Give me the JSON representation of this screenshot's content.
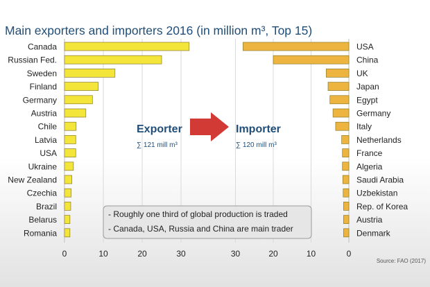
{
  "title": "Main exporters and importers 2016 (in million m³, Top 15)",
  "source": "Source: FAO (2017)",
  "colors": {
    "exporter_bar": "#F4E53A",
    "importer_bar": "#EDB53F",
    "bar_stroke": "#8A7A2A",
    "arrow": "#D13A35",
    "axis_label_blue": "#1F4E79",
    "note_bg": "#E6E6E6",
    "gradient_bottom": "#E2E2E2"
  },
  "exporter_label": "Exporter",
  "exporter_sum": "∑ 121 mill m³",
  "importer_label": "Importer",
  "importer_sum": "∑ 120 mill m³",
  "note_lines": [
    "- Roughly one third of global production is traded",
    "- Canada, USA, Russia and China are main trader"
  ],
  "chart_data": [
    {
      "type": "bar",
      "orientation": "horizontal",
      "name": "Exporter",
      "categories": [
        "Canada",
        "Russian Fed.",
        "Sweden",
        "Finland",
        "Germany",
        "Austria",
        "Chile",
        "Latvia",
        "USA",
        "Ukraine",
        "New Zealand",
        "Czechia",
        "Brazil",
        "Belarus",
        "Romania"
      ],
      "values": [
        32.1,
        25.0,
        13.0,
        8.7,
        7.2,
        5.5,
        3.0,
        2.9,
        2.9,
        2.3,
        1.9,
        1.7,
        1.6,
        1.4,
        1.4
      ],
      "xlim": [
        0,
        35
      ],
      "xticks": [
        "0",
        "10",
        "20",
        "30"
      ]
    },
    {
      "type": "bar",
      "orientation": "horizontal",
      "direction": "reversed",
      "name": "Importer",
      "categories": [
        "USA",
        "China",
        "UK",
        "Japan",
        "Egypt",
        "Germany",
        "Italy",
        "Netherlands",
        "France",
        "Algeria",
        "Saudi Arabia",
        "Uzbekistan",
        "Rep. of Korea",
        "Austria",
        "Denmark"
      ],
      "values": [
        28.0,
        20.0,
        6.0,
        5.5,
        5.0,
        4.2,
        3.5,
        1.9,
        1.7,
        1.7,
        1.6,
        1.5,
        1.4,
        1.4,
        1.4
      ],
      "xlim": [
        0,
        30
      ],
      "xticks": [
        "30",
        "20",
        "10",
        "0"
      ]
    }
  ]
}
